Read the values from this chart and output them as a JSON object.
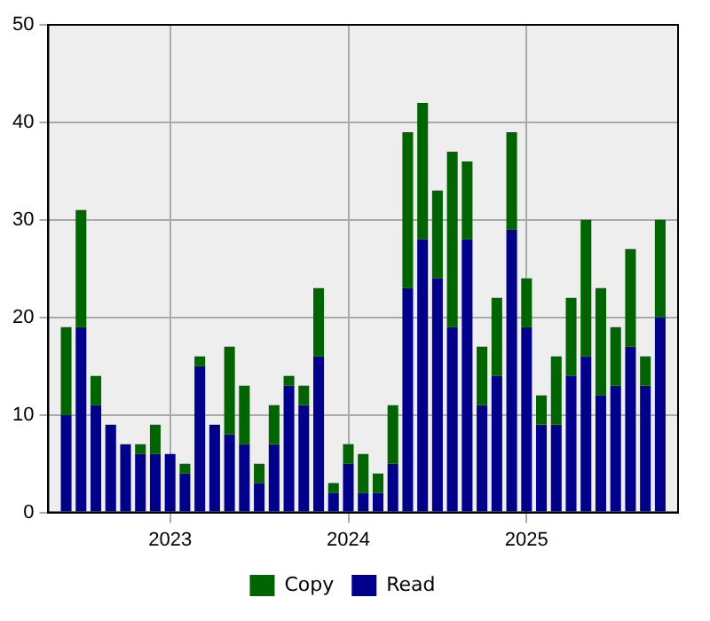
{
  "chart_data": {
    "type": "bar",
    "stacked": true,
    "x": [
      "2022-06",
      "2022-07",
      "2022-08",
      "2022-09",
      "2022-10",
      "2022-11",
      "2022-12",
      "2023-01",
      "2023-02",
      "2023-03",
      "2023-04",
      "2023-05",
      "2023-06",
      "2023-07",
      "2023-08",
      "2023-09",
      "2023-10",
      "2023-11",
      "2023-12",
      "2024-01",
      "2024-02",
      "2024-03",
      "2024-04",
      "2024-05",
      "2024-06",
      "2024-07",
      "2024-08",
      "2024-09",
      "2024-10",
      "2024-11",
      "2024-12",
      "2025-01",
      "2025-02",
      "2025-03",
      "2025-04",
      "2025-05",
      "2025-06",
      "2025-07",
      "2025-08",
      "2025-09",
      "2025-10"
    ],
    "series": [
      {
        "name": "Read",
        "color": "#00008b",
        "values": [
          10,
          19,
          11,
          9,
          7,
          6,
          6,
          6,
          4,
          15,
          9,
          8,
          7,
          3,
          7,
          13,
          11,
          16,
          2,
          5,
          2,
          2,
          5,
          23,
          28,
          24,
          19,
          28,
          11,
          14,
          29,
          19,
          9,
          9,
          14,
          16,
          12,
          13,
          17,
          13,
          20
        ]
      },
      {
        "name": "Copy",
        "color": "#006400",
        "values": [
          9,
          12,
          3,
          0,
          0,
          1,
          3,
          0,
          1,
          1,
          0,
          9,
          6,
          2,
          4,
          1,
          2,
          7,
          1,
          2,
          4,
          2,
          6,
          16,
          14,
          9,
          18,
          8,
          6,
          8,
          10,
          5,
          3,
          7,
          8,
          14,
          11,
          6,
          10,
          3,
          10
        ]
      }
    ],
    "xlim": [
      "2022-04-25",
      "2025-11-07"
    ],
    "xticks": [
      {
        "value": "2023-01",
        "label": "2023"
      },
      {
        "value": "2024-01",
        "label": "2024"
      },
      {
        "value": "2025-01",
        "label": "2025"
      }
    ],
    "ylim": [
      0,
      50
    ],
    "yticks": [
      0,
      10,
      20,
      30,
      40,
      50
    ],
    "grid": true,
    "legend": "bottom"
  }
}
